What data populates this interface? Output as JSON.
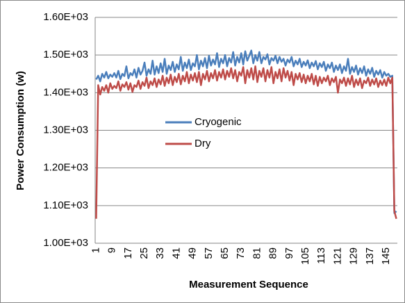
{
  "chart_data": {
    "type": "line",
    "y_label": "Power Consumption (w)",
    "x_label": "Measurement Sequence",
    "categories": [
      1,
      null,
      null,
      null,
      null,
      null,
      null,
      null,
      9,
      null,
      null,
      null,
      null,
      null,
      null,
      null,
      17,
      null,
      null,
      null,
      null,
      null,
      null,
      null,
      25,
      null,
      null,
      null,
      null,
      null,
      null,
      null,
      33,
      null,
      null,
      null,
      null,
      null,
      null,
      null,
      41,
      null,
      null,
      null,
      null,
      null,
      null,
      null,
      49,
      null,
      null,
      null,
      null,
      null,
      null,
      null,
      57,
      null,
      null,
      null,
      null,
      null,
      null,
      null,
      65,
      null,
      null,
      null,
      null,
      null,
      null,
      null,
      73,
      null,
      null,
      null,
      null,
      null,
      null,
      null,
      81,
      null,
      null,
      null,
      null,
      null,
      null,
      null,
      89,
      null,
      null,
      null,
      null,
      null,
      null,
      null,
      97,
      null,
      null,
      null,
      null,
      null,
      null,
      null,
      105,
      null,
      null,
      null,
      null,
      null,
      null,
      null,
      113,
      null,
      null,
      null,
      null,
      null,
      null,
      null,
      121,
      null,
      null,
      null,
      null,
      null,
      null,
      null,
      129,
      null,
      null,
      null,
      null,
      null,
      null,
      null,
      137,
      null,
      null,
      null,
      null,
      null,
      null,
      null,
      145,
      null,
      null,
      null,
      null,
      null
    ],
    "series": [
      {
        "name": "Cryogenic",
        "color": "#4a7ebb",
        "values": [
          1435,
          1445,
          1430,
          1450,
          1440,
          1455,
          1438,
          1448,
          1442,
          1452,
          1440,
          1458,
          1436,
          1450,
          1444,
          1470,
          1438,
          1452,
          1446,
          1462,
          1440,
          1466,
          1448,
          1458,
          1480,
          1445,
          1462,
          1450,
          1485,
          1448,
          1470,
          1452,
          1478,
          1455,
          1490,
          1450,
          1472,
          1460,
          1482,
          1455,
          1475,
          1462,
          1495,
          1458,
          1480,
          1465,
          1488,
          1460,
          1478,
          1470,
          1500,
          1462,
          1485,
          1470,
          1492,
          1465,
          1498,
          1472,
          1488,
          1475,
          1505,
          1468,
          1490,
          1478,
          1500,
          1470,
          1492,
          1480,
          1508,
          1472,
          1495,
          1480,
          1505,
          1475,
          1510,
          1485,
          1498,
          1512,
          1478,
          1500,
          1485,
          1508,
          1478,
          1495,
          1488,
          1502,
          1475,
          1492,
          1485,
          1498,
          1478,
          1495,
          1482,
          1490,
          1472,
          1488,
          1480,
          1495,
          1470,
          1485,
          1475,
          1490,
          1468,
          1482,
          1472,
          1486,
          1465,
          1480,
          1470,
          1484,
          1462,
          1478,
          1468,
          1482,
          1458,
          1475,
          1465,
          1480,
          1455,
          1472,
          1460,
          1475,
          1452,
          1470,
          1458,
          1490,
          1450,
          1468,
          1455,
          1472,
          1448,
          1465,
          1452,
          1470,
          1445,
          1462,
          1450,
          1466,
          1442,
          1458,
          1448,
          1460,
          1440,
          1455,
          1445,
          1450,
          1442,
          1445,
          1080,
          1085
        ]
      },
      {
        "name": "Dry",
        "color": "#be4b48",
        "values": [
          1065,
          1420,
          1395,
          1415,
          1405,
          1420,
          1400,
          1425,
          1410,
          1418,
          1412,
          1430,
          1405,
          1422,
          1415,
          1428,
          1408,
          1425,
          1402,
          1420,
          1415,
          1432,
          1410,
          1428,
          1418,
          1440,
          1412,
          1430,
          1420,
          1438,
          1415,
          1435,
          1422,
          1445,
          1418,
          1440,
          1425,
          1448,
          1420,
          1442,
          1428,
          1450,
          1422,
          1445,
          1430,
          1455,
          1425,
          1448,
          1432,
          1452,
          1428,
          1455,
          1420,
          1450,
          1435,
          1458,
          1430,
          1452,
          1438,
          1460,
          1432,
          1455,
          1440,
          1462,
          1435,
          1458,
          1442,
          1465,
          1438,
          1460,
          1430,
          1455,
          1445,
          1468,
          1425,
          1460,
          1440,
          1465,
          1435,
          1470,
          1428,
          1458,
          1442,
          1465,
          1430,
          1460,
          1440,
          1468,
          1425,
          1455,
          1438,
          1462,
          1430,
          1465,
          1440,
          1458,
          1432,
          1455,
          1420,
          1450,
          1435,
          1452,
          1428,
          1448,
          1425,
          1445,
          1430,
          1450,
          1422,
          1445,
          1418,
          1442,
          1425,
          1440,
          1430,
          1445,
          1420,
          1438,
          1428,
          1442,
          1400,
          1435,
          1425,
          1440,
          1418,
          1438,
          1422,
          1445,
          1415,
          1435,
          1420,
          1438,
          1412,
          1432,
          1425,
          1440,
          1418,
          1435,
          1422,
          1438,
          1415,
          1432,
          1420,
          1435,
          1418,
          1440,
          1425,
          1440,
          1085,
          1065
        ]
      }
    ],
    "ylim": [
      1000,
      1600
    ],
    "yticks": [
      {
        "value": 1000,
        "label": "1.00E+03"
      },
      {
        "value": 1100,
        "label": "1.10E+03"
      },
      {
        "value": 1200,
        "label": "1.20E+03"
      },
      {
        "value": 1300,
        "label": "1.30E+03"
      },
      {
        "value": 1400,
        "label": "1.40E+03"
      },
      {
        "value": 1500,
        "label": "1.50E+03"
      },
      {
        "value": 1600,
        "label": "1.60E+03"
      }
    ],
    "grid": true
  }
}
